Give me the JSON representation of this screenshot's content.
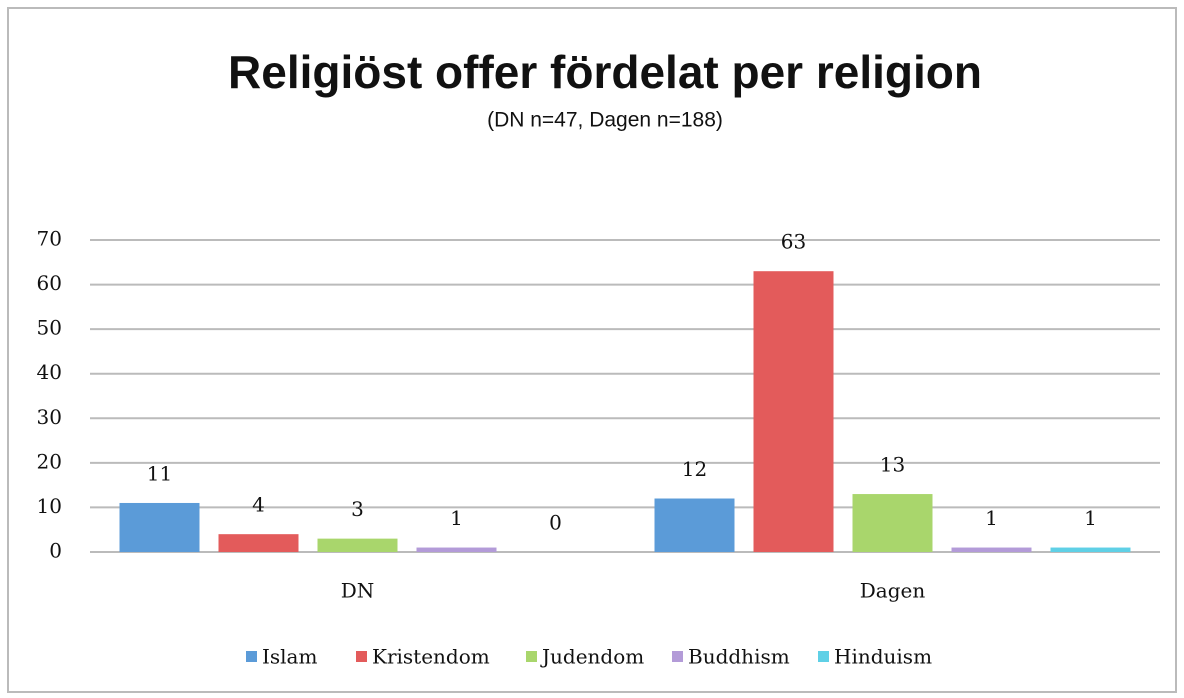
{
  "chart_data": {
    "type": "bar",
    "title": "Religiöst offer fördelat per religion",
    "subtitle": "(DN n=47, Dagen n=188)",
    "categories": [
      "DN",
      "Dagen"
    ],
    "series": [
      {
        "name": "Islam",
        "color": "#5b9bd8",
        "values": [
          11,
          12
        ]
      },
      {
        "name": "Kristendom",
        "color": "#e35b5b",
        "values": [
          4,
          63
        ]
      },
      {
        "name": "Judendom",
        "color": "#a9d66c",
        "values": [
          3,
          13
        ]
      },
      {
        "name": "Buddhism",
        "color": "#b39bd8",
        "values": [
          1,
          1
        ]
      },
      {
        "name": "Hinduism",
        "color": "#5fd0e6",
        "values": [
          0,
          1
        ]
      }
    ],
    "ylim": [
      0,
      70
    ],
    "yticks": [
      0,
      10,
      20,
      30,
      40,
      50,
      60,
      70
    ],
    "grid": true,
    "legend": "bottom"
  }
}
